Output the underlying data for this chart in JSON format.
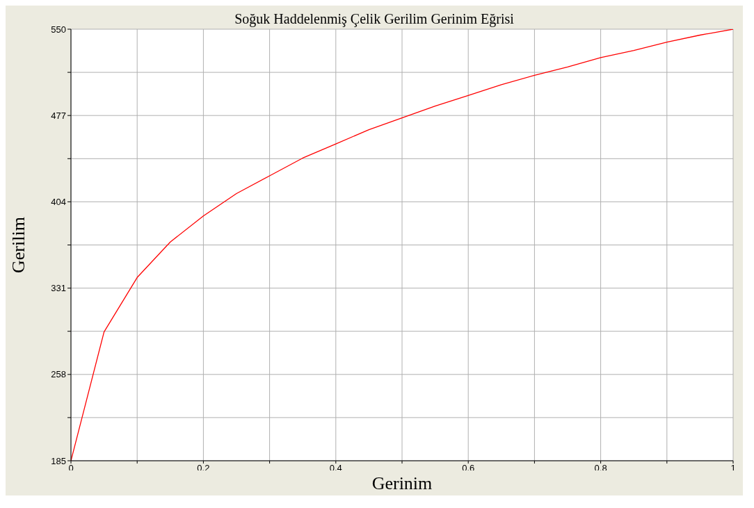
{
  "chart_data": {
    "type": "line",
    "title": "Soğuk Haddelenmiş Çelik Gerilim Gerinim Eğrisi",
    "xlabel": "Gerinim",
    "ylabel": "Gerilim",
    "x": [
      0,
      0.05,
      0.1,
      0.15,
      0.2,
      0.25,
      0.3,
      0.35,
      0.4,
      0.45,
      0.5,
      0.55,
      0.6,
      0.65,
      0.7,
      0.75,
      0.8,
      0.85,
      0.9,
      0.95,
      1
    ],
    "series": [
      {
        "color": "#ff0000",
        "values": [
          185,
          294,
          340,
          370,
          392,
          411,
          426,
          441,
          453,
          465,
          475,
          485,
          494,
          503,
          511,
          518,
          526,
          532,
          539,
          545,
          550
        ]
      }
    ],
    "xlim": [
      0,
      1
    ],
    "xticks": [
      0,
      {
        "value": 0.1,
        "label": null
      },
      0.2,
      {
        "value": 0.3,
        "label": null
      },
      0.4,
      {
        "value": 0.5,
        "label": null
      },
      0.6,
      {
        "value": 0.7,
        "label": null
      },
      0.8,
      {
        "value": 0.9,
        "label": null
      },
      1
    ],
    "ylim": [
      185,
      550
    ],
    "yticks": [
      185,
      {
        "value": 221.5,
        "label": null
      },
      258,
      {
        "value": 294.5,
        "label": null
      },
      331,
      {
        "value": 367.5,
        "label": null
      },
      404,
      {
        "value": 440.5,
        "label": null
      },
      477,
      {
        "value": 513.5,
        "label": null
      },
      550
    ],
    "grid": true,
    "legend": false,
    "marker": "none",
    "line_style": "solid"
  }
}
